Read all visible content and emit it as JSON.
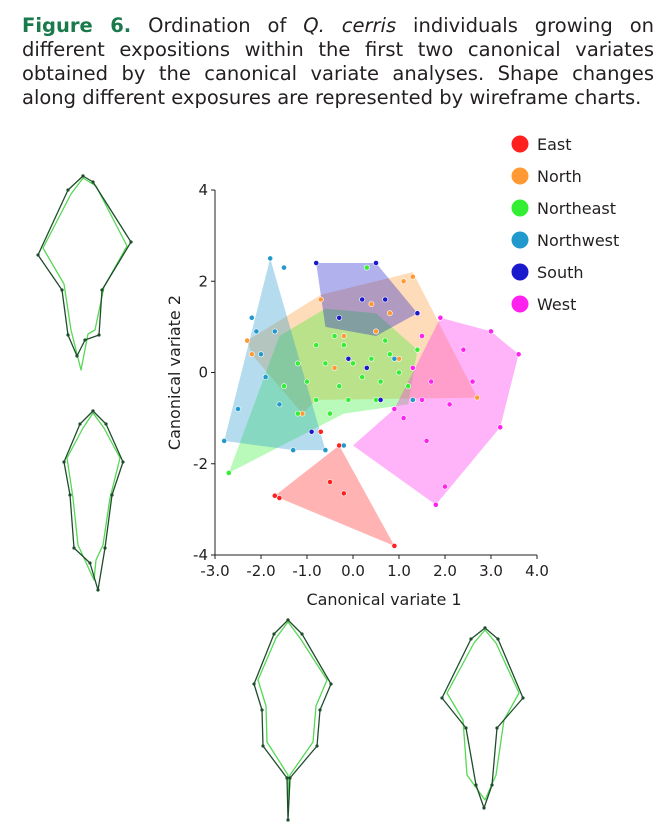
{
  "caption": {
    "label": "Figure 6.",
    "before": " Ordination of ",
    "species": "Q. cerris",
    "after": " individuals growing on different expositions within the first two canonical variates obtained by the canonical variate analyses. Shape changes along different exposures are represented by wireframe charts."
  },
  "chart_data": {
    "type": "scatter",
    "xlabel": "Canonical variate 1",
    "ylabel": "Canonical variate 2",
    "xlim": [
      -3.0,
      4.0
    ],
    "ylim": [
      -4,
      4
    ],
    "x_ticks": [
      "-3.0",
      "-2.0",
      "-1.0",
      "0.0",
      "1.0",
      "2.0",
      "3.0",
      "4.0"
    ],
    "y_ticks": [
      "4",
      "2",
      "0",
      "-2",
      "-4"
    ],
    "legend_position": "top-right",
    "grid": false,
    "series": [
      {
        "name": "East",
        "color": "#ff2020",
        "hull": [
          [
            -1.7,
            -2.7
          ],
          [
            -0.3,
            -1.6
          ],
          [
            0.9,
            -3.8
          ],
          [
            -1.6,
            -2.75
          ]
        ],
        "points": [
          [
            -1.7,
            -2.7
          ],
          [
            -1.6,
            -2.75
          ],
          [
            -0.2,
            -2.65
          ],
          [
            -0.5,
            -2.4
          ],
          [
            0.9,
            -3.8
          ],
          [
            -0.3,
            -1.6
          ],
          [
            -0.7,
            -1.3
          ]
        ]
      },
      {
        "name": "North",
        "color": "#ff9933",
        "hull": [
          [
            -2.3,
            0.7
          ],
          [
            -2.2,
            0.4
          ],
          [
            -1.1,
            -0.9
          ],
          [
            -0.8,
            -0.6
          ],
          [
            2.7,
            -0.55
          ],
          [
            1.3,
            2.2
          ],
          [
            -0.7,
            1.7
          ]
        ],
        "points": [
          [
            -2.3,
            0.7
          ],
          [
            -2.2,
            0.4
          ],
          [
            -1.1,
            -0.9
          ],
          [
            2.7,
            -0.55
          ],
          [
            1.3,
            2.1
          ],
          [
            1.1,
            2.0
          ],
          [
            0.4,
            1.5
          ],
          [
            0.8,
            1.3
          ],
          [
            0.5,
            0.9
          ],
          [
            -0.2,
            0.8
          ],
          [
            -0.7,
            1.6
          ],
          [
            1.0,
            0.3
          ],
          [
            -0.4,
            0.1
          ]
        ]
      },
      {
        "name": "Northeast",
        "color": "#33ee33",
        "hull": [
          [
            -2.7,
            -2.2
          ],
          [
            -0.2,
            -0.9
          ],
          [
            1.2,
            -0.7
          ],
          [
            1.4,
            0.5
          ],
          [
            0.5,
            1.3
          ],
          [
            -0.6,
            1.4
          ],
          [
            -1.6,
            0.8
          ]
        ],
        "points": [
          [
            -2.7,
            -2.2
          ],
          [
            0.3,
            2.3
          ],
          [
            -0.2,
            0.6
          ],
          [
            -0.4,
            0.8
          ],
          [
            -0.8,
            0.6
          ],
          [
            -1.2,
            0.2
          ],
          [
            -0.6,
            0.2
          ],
          [
            0.0,
            0.2
          ],
          [
            0.4,
            0.3
          ],
          [
            0.8,
            0.4
          ],
          [
            0.2,
            -0.1
          ],
          [
            -0.3,
            -0.3
          ],
          [
            -0.8,
            -0.6
          ],
          [
            -1.2,
            -0.9
          ],
          [
            0.6,
            -0.2
          ],
          [
            1.0,
            0.0
          ],
          [
            1.2,
            -0.3
          ],
          [
            -0.1,
            -0.6
          ],
          [
            0.5,
            -0.6
          ],
          [
            -1.5,
            -0.3
          ],
          [
            -1.0,
            -0.2
          ],
          [
            0.7,
            0.7
          ],
          [
            1.4,
            0.5
          ],
          [
            -0.5,
            -0.9
          ]
        ]
      },
      {
        "name": "Northwest",
        "color": "#2299cc",
        "hull": [
          [
            -2.8,
            -1.5
          ],
          [
            -1.8,
            2.5
          ],
          [
            -0.6,
            -1.7
          ],
          [
            -1.3,
            -1.7
          ]
        ],
        "points": [
          [
            -2.8,
            -1.5
          ],
          [
            -1.8,
            2.5
          ],
          [
            -1.5,
            2.3
          ],
          [
            -2.1,
            0.9
          ],
          [
            -2.0,
            0.4
          ],
          [
            -1.9,
            -0.1
          ],
          [
            -1.6,
            -0.7
          ],
          [
            -2.5,
            -0.8
          ],
          [
            -1.3,
            -1.7
          ],
          [
            -0.6,
            -1.7
          ],
          [
            -0.2,
            -1.6
          ],
          [
            -2.2,
            1.2
          ],
          [
            -1.7,
            0.9
          ],
          [
            0.9,
            0.3
          ],
          [
            1.3,
            -0.6
          ]
        ]
      },
      {
        "name": "South",
        "color": "#1a1acc",
        "hull": [
          [
            -0.8,
            2.4
          ],
          [
            0.5,
            2.4
          ],
          [
            1.4,
            1.3
          ],
          [
            0.5,
            0.8
          ],
          [
            -0.6,
            1.0
          ]
        ],
        "points": [
          [
            -0.8,
            2.4
          ],
          [
            0.5,
            2.4
          ],
          [
            1.4,
            1.3
          ],
          [
            -0.3,
            1.2
          ],
          [
            0.2,
            1.6
          ],
          [
            0.7,
            1.6
          ],
          [
            -0.1,
            0.3
          ],
          [
            0.6,
            -0.6
          ],
          [
            -0.9,
            -1.3
          ],
          [
            0.3,
            0.1
          ]
        ]
      },
      {
        "name": "West",
        "color": "#ff22ee",
        "hull": [
          [
            0.0,
            -1.6
          ],
          [
            1.8,
            -2.9
          ],
          [
            3.2,
            -1.2
          ],
          [
            3.6,
            0.4
          ],
          [
            3.0,
            0.9
          ],
          [
            1.9,
            1.2
          ],
          [
            0.9,
            -0.8
          ]
        ],
        "points": [
          [
            1.8,
            -2.9
          ],
          [
            3.2,
            -1.2
          ],
          [
            3.6,
            0.4
          ],
          [
            3.0,
            0.9
          ],
          [
            1.9,
            1.2
          ],
          [
            1.5,
            0.8
          ],
          [
            2.4,
            0.5
          ],
          [
            1.7,
            -0.2
          ],
          [
            2.1,
            -0.7
          ],
          [
            1.1,
            -1.0
          ],
          [
            1.6,
            -1.5
          ],
          [
            2.0,
            -2.5
          ],
          [
            1.3,
            0.1
          ],
          [
            0.9,
            -0.8
          ],
          [
            2.6,
            -0.2
          ],
          [
            1.5,
            -0.6
          ]
        ]
      }
    ]
  }
}
